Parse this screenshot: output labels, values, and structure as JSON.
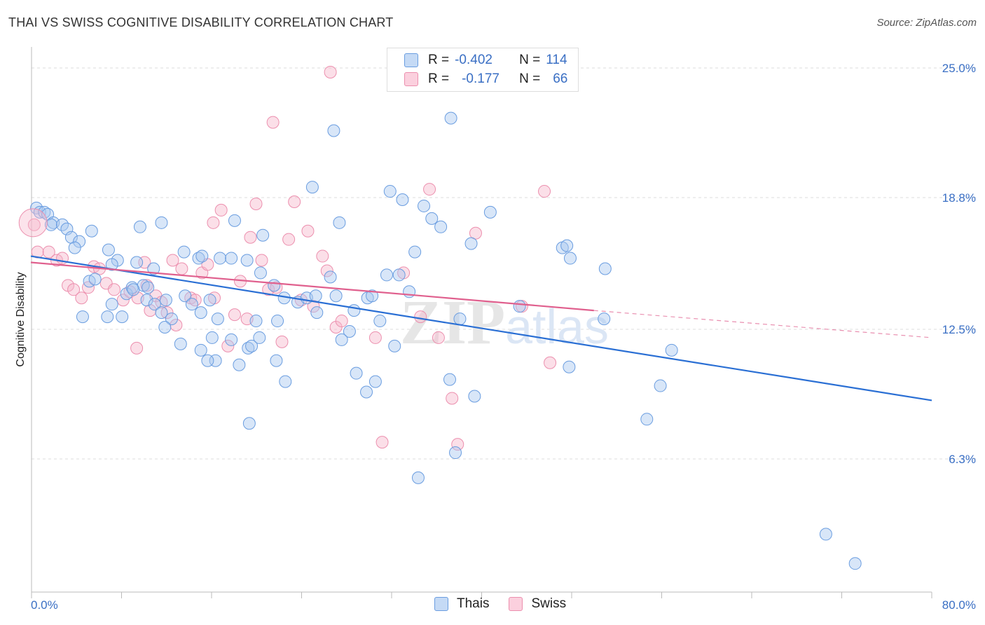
{
  "title": "THAI VS SWISS COGNITIVE DISABILITY CORRELATION CHART",
  "source": "Source: ZipAtlas.com",
  "watermark": "ZIPatlas",
  "legend": {
    "rows": [
      {
        "r_label": "R =",
        "r_value": "-0.402",
        "n_label": "N =",
        "n_value": "114"
      },
      {
        "r_label": "R =",
        "r_value": "-0.177",
        "n_label": "N =",
        "n_value": "66"
      }
    ]
  },
  "bottom_legend": {
    "thais": "Thais",
    "swiss": "Swiss"
  },
  "colors": {
    "thais_fill": "#a9c8f0",
    "thais_stroke": "#6a9de0",
    "thais_line": "#2a6fd4",
    "swiss_fill": "#f7b8cc",
    "swiss_stroke": "#ec8fae",
    "swiss_line": "#e0608e",
    "tick_text": "#3a6fc4",
    "grid": "#dddddd"
  },
  "chart_data": {
    "type": "scatter",
    "title": "THAI VS SWISS COGNITIVE DISABILITY CORRELATION CHART",
    "xlabel": "",
    "ylabel": "Cognitive Disability",
    "xlim": [
      0,
      80
    ],
    "ylim": [
      0,
      26.5
    ],
    "x_tick_labels": [
      "0.0%",
      "80.0%"
    ],
    "y_ticks": [
      6.3,
      12.5,
      18.8,
      25.0
    ],
    "y_tick_labels": [
      "6.3%",
      "12.5%",
      "18.8%",
      "25.0%"
    ],
    "grid": true,
    "series": [
      {
        "name": "Thais",
        "points": [
          [
            0.5,
            18.3
          ],
          [
            0.8,
            18.1
          ],
          [
            1.2,
            18.1
          ],
          [
            1.5,
            18.0
          ],
          [
            2.0,
            17.6
          ],
          [
            1.8,
            17.5
          ],
          [
            2.8,
            17.5
          ],
          [
            3.2,
            17.3
          ],
          [
            3.6,
            16.9
          ],
          [
            4.3,
            16.7
          ],
          [
            3.9,
            16.4
          ],
          [
            5.4,
            17.2
          ],
          [
            6.9,
            16.3
          ],
          [
            7.7,
            15.8
          ],
          [
            9.4,
            15.7
          ],
          [
            9.7,
            17.4
          ],
          [
            11.6,
            17.6
          ],
          [
            13.6,
            16.2
          ],
          [
            14.9,
            15.9
          ],
          [
            16.8,
            15.9
          ],
          [
            15.2,
            16.0
          ],
          [
            19.2,
            15.8
          ],
          [
            18.1,
            17.7
          ],
          [
            20.6,
            17.0
          ],
          [
            17.8,
            15.9
          ],
          [
            5.2,
            14.8
          ],
          [
            5.7,
            14.9
          ],
          [
            7.2,
            13.7
          ],
          [
            6.8,
            13.1
          ],
          [
            8.1,
            13.1
          ],
          [
            8.5,
            14.2
          ],
          [
            9.0,
            14.5
          ],
          [
            10.0,
            14.6
          ],
          [
            10.4,
            14.5
          ],
          [
            10.3,
            13.9
          ],
          [
            11.0,
            13.7
          ],
          [
            11.6,
            13.3
          ],
          [
            12.0,
            13.9
          ],
          [
            12.5,
            13.0
          ],
          [
            11.9,
            12.6
          ],
          [
            13.7,
            14.1
          ],
          [
            14.3,
            13.7
          ],
          [
            15.1,
            13.3
          ],
          [
            15.9,
            13.9
          ],
          [
            16.6,
            13.0
          ],
          [
            16.1,
            12.1
          ],
          [
            15.1,
            11.5
          ],
          [
            16.4,
            11.0
          ],
          [
            15.7,
            11.0
          ],
          [
            17.8,
            12.0
          ],
          [
            18.5,
            10.8
          ],
          [
            19.3,
            11.6
          ],
          [
            20.0,
            12.9
          ],
          [
            19.6,
            11.7
          ],
          [
            20.4,
            15.2
          ],
          [
            21.6,
            14.6
          ],
          [
            22.5,
            14.0
          ],
          [
            21.9,
            12.9
          ],
          [
            21.8,
            11.0
          ],
          [
            22.6,
            10.0
          ],
          [
            23.7,
            13.8
          ],
          [
            24.5,
            14.0
          ],
          [
            25.3,
            14.1
          ],
          [
            26.6,
            15.0
          ],
          [
            27.4,
            17.6
          ],
          [
            27.1,
            14.1
          ],
          [
            25.0,
            19.3
          ],
          [
            25.4,
            13.3
          ],
          [
            26.9,
            22.0
          ],
          [
            28.3,
            12.4
          ],
          [
            28.7,
            13.4
          ],
          [
            28.9,
            10.4
          ],
          [
            29.9,
            14.0
          ],
          [
            30.3,
            14.1
          ],
          [
            30.6,
            10.0
          ],
          [
            29.8,
            9.5
          ],
          [
            31.0,
            12.9
          ],
          [
            31.6,
            15.1
          ],
          [
            31.9,
            19.1
          ],
          [
            32.7,
            15.1
          ],
          [
            32.3,
            11.7
          ],
          [
            33.0,
            18.7
          ],
          [
            33.6,
            14.3
          ],
          [
            34.1,
            16.2
          ],
          [
            34.4,
            5.4
          ],
          [
            34.9,
            18.4
          ],
          [
            35.6,
            17.8
          ],
          [
            36.4,
            17.4
          ],
          [
            37.3,
            22.6
          ],
          [
            37.2,
            10.1
          ],
          [
            37.7,
            6.6
          ],
          [
            38.1,
            13.0
          ],
          [
            39.1,
            16.6
          ],
          [
            39.4,
            9.3
          ],
          [
            40.8,
            18.1
          ],
          [
            43.4,
            13.6
          ],
          [
            47.2,
            16.4
          ],
          [
            47.6,
            16.5
          ],
          [
            47.9,
            15.9
          ],
          [
            47.8,
            10.7
          ],
          [
            50.9,
            13.0
          ],
          [
            51.0,
            15.4
          ],
          [
            54.7,
            8.2
          ],
          [
            55.9,
            9.8
          ],
          [
            56.9,
            11.5
          ],
          [
            70.6,
            2.7
          ],
          [
            73.2,
            1.3
          ],
          [
            19.4,
            8.0
          ],
          [
            13.3,
            11.8
          ],
          [
            10.9,
            15.4
          ],
          [
            9.1,
            14.4
          ],
          [
            7.2,
            15.6
          ],
          [
            4.6,
            13.1
          ],
          [
            20.3,
            12.1
          ],
          [
            27.6,
            12.0
          ]
        ]
      },
      {
        "name": "Swiss",
        "points": [
          [
            0.3,
            17.5
          ],
          [
            0.6,
            16.2
          ],
          [
            1.6,
            16.2
          ],
          [
            2.3,
            15.8
          ],
          [
            2.8,
            15.9
          ],
          [
            3.3,
            14.6
          ],
          [
            3.8,
            14.4
          ],
          [
            4.5,
            14.0
          ],
          [
            5.1,
            14.5
          ],
          [
            5.6,
            15.5
          ],
          [
            6.1,
            15.4
          ],
          [
            6.7,
            14.7
          ],
          [
            7.4,
            14.4
          ],
          [
            8.2,
            13.9
          ],
          [
            8.8,
            14.3
          ],
          [
            9.5,
            14.0
          ],
          [
            10.1,
            15.7
          ],
          [
            10.6,
            13.4
          ],
          [
            11.1,
            14.1
          ],
          [
            11.6,
            13.8
          ],
          [
            12.1,
            13.3
          ],
          [
            12.6,
            15.8
          ],
          [
            12.9,
            12.7
          ],
          [
            13.4,
            15.4
          ],
          [
            14.2,
            14.0
          ],
          [
            14.6,
            13.9
          ],
          [
            15.2,
            15.2
          ],
          [
            15.7,
            15.6
          ],
          [
            16.2,
            17.6
          ],
          [
            16.9,
            18.2
          ],
          [
            17.5,
            11.7
          ],
          [
            18.1,
            13.2
          ],
          [
            18.6,
            14.8
          ],
          [
            19.2,
            13.0
          ],
          [
            19.5,
            16.9
          ],
          [
            20.0,
            18.5
          ],
          [
            20.5,
            15.8
          ],
          [
            21.1,
            14.4
          ],
          [
            21.5,
            22.4
          ],
          [
            22.3,
            11.9
          ],
          [
            22.9,
            16.8
          ],
          [
            23.4,
            18.6
          ],
          [
            24.0,
            13.9
          ],
          [
            24.6,
            17.2
          ],
          [
            25.1,
            13.6
          ],
          [
            25.9,
            16.0
          ],
          [
            26.3,
            15.3
          ],
          [
            26.6,
            24.8
          ],
          [
            27.1,
            12.6
          ],
          [
            27.6,
            12.9
          ],
          [
            30.6,
            12.1
          ],
          [
            31.2,
            7.1
          ],
          [
            33.1,
            15.2
          ],
          [
            34.6,
            13.1
          ],
          [
            35.4,
            19.2
          ],
          [
            36.2,
            12.1
          ],
          [
            37.4,
            9.2
          ],
          [
            37.9,
            7.0
          ],
          [
            39.5,
            17.1
          ],
          [
            43.6,
            13.6
          ],
          [
            45.6,
            19.1
          ],
          [
            46.1,
            10.9
          ],
          [
            10.3,
            14.6
          ],
          [
            9.4,
            11.6
          ],
          [
            21.8,
            14.5
          ],
          [
            16.3,
            14.0
          ]
        ]
      }
    ],
    "trend_lines": [
      {
        "series": "Thais",
        "x": [
          0,
          80
        ],
        "y": [
          16.0,
          9.1
        ]
      },
      {
        "series": "Swiss",
        "x": [
          0,
          50
        ],
        "y": [
          15.7,
          13.4
        ],
        "dashed_to": [
          80,
          12.1
        ]
      }
    ]
  }
}
